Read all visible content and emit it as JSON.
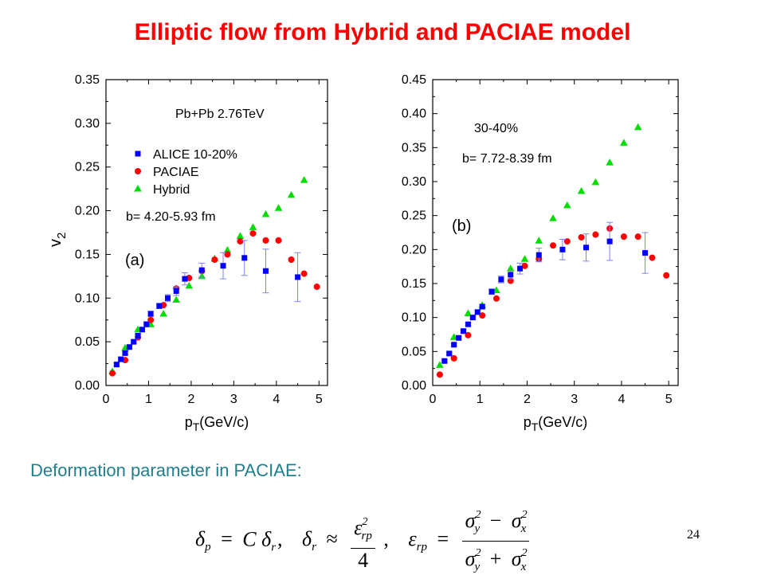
{
  "slide": {
    "title": "Elliptic flow from Hybrid and PACIAE model",
    "caption": "Deformation parameter in PACIAE:",
    "page_number": "24"
  },
  "formula": {
    "delta": "δ",
    "p": "p",
    "r": "r",
    "rp": "rp",
    "C": "C",
    "eps": "ε",
    "sigma": "σ",
    "x": "x",
    "y": "y",
    "two": "2",
    "four": "4",
    "eq": "=",
    "approx": "≈",
    "minus": "−",
    "plus": "+",
    "comma": ","
  },
  "colors": {
    "title": "#ff0000",
    "caption": "#1f7f8f",
    "alice": "#0000ff",
    "paciae": "#ff0000",
    "hybrid": "#00dd00",
    "errorbar": "#8080ff"
  },
  "chart_data": [
    {
      "type": "scatter",
      "panel_label": "(a)",
      "xlabel_main": "p",
      "xlabel_sub": "T",
      "xlabel_rest": "(GeV/c)",
      "ylabel_main": "v",
      "ylabel_sub": "2",
      "xlim": [
        0,
        5.2
      ],
      "ylim": [
        0,
        0.35
      ],
      "xticks": [
        0,
        1,
        2,
        3,
        4,
        5
      ],
      "yticks": [
        0.0,
        0.05,
        0.1,
        0.15,
        0.2,
        0.25,
        0.3,
        0.35
      ],
      "ytick_labels": [
        "0.00",
        "0.05",
        "0.10",
        "0.15",
        "0.20",
        "0.25",
        "0.30",
        "0.35"
      ],
      "annotations": [
        "Pb+Pb 2.76TeV",
        "b= 4.20-5.93 fm"
      ],
      "legend": [
        "ALICE 10-20%",
        "PACIAE",
        "Hybrid"
      ],
      "series": [
        {
          "name": "ALICE 10-20%",
          "marker": "square",
          "x": [
            0.25,
            0.35,
            0.45,
            0.55,
            0.65,
            0.75,
            0.85,
            0.95,
            1.05,
            1.25,
            1.45,
            1.65,
            1.85,
            2.25,
            2.75,
            3.25,
            3.75,
            4.5
          ],
          "y": [
            0.024,
            0.03,
            0.037,
            0.044,
            0.05,
            0.057,
            0.064,
            0.07,
            0.082,
            0.091,
            0.1,
            0.108,
            0.122,
            0.132,
            0.137,
            0.146,
            0.131,
            0.124
          ],
          "err": [
            0.002,
            0.002,
            0.002,
            0.002,
            0.002,
            0.002,
            0.002,
            0.003,
            0.003,
            0.003,
            0.004,
            0.005,
            0.007,
            0.008,
            0.015,
            0.02,
            0.025,
            0.028
          ]
        },
        {
          "name": "PACIAE",
          "marker": "circle",
          "x": [
            0.15,
            0.45,
            0.75,
            1.05,
            1.35,
            1.65,
            1.95,
            2.25,
            2.55,
            2.85,
            3.15,
            3.45,
            3.75,
            4.05,
            4.35,
            4.65,
            4.95
          ],
          "y": [
            0.014,
            0.029,
            0.055,
            0.075,
            0.092,
            0.111,
            0.123,
            0.131,
            0.144,
            0.15,
            0.165,
            0.174,
            0.166,
            0.166,
            0.144,
            0.128,
            0.113
          ]
        },
        {
          "name": "Hybrid",
          "marker": "triangle",
          "x": [
            0.15,
            0.45,
            0.75,
            1.05,
            1.35,
            1.65,
            1.95,
            2.25,
            2.55,
            2.85,
            3.15,
            3.45,
            3.75,
            4.05,
            4.35,
            4.65
          ],
          "y": [
            0.016,
            0.043,
            0.064,
            0.07,
            0.082,
            0.098,
            0.114,
            0.125,
            0.145,
            0.155,
            0.171,
            0.181,
            0.196,
            0.203,
            0.218,
            0.235
          ]
        }
      ]
    },
    {
      "type": "scatter",
      "panel_label": "(b)",
      "xlabel_main": "p",
      "xlabel_sub": "T",
      "xlabel_rest": "(GeV/c)",
      "xlim": [
        0,
        5.2
      ],
      "ylim": [
        0,
        0.45
      ],
      "xticks": [
        0,
        1,
        2,
        3,
        4,
        5
      ],
      "yticks": [
        0.0,
        0.05,
        0.1,
        0.15,
        0.2,
        0.25,
        0.3,
        0.35,
        0.4,
        0.45
      ],
      "ytick_labels": [
        "0.00",
        "0.05",
        "0.10",
        "0.15",
        "0.20",
        "0.25",
        "0.30",
        "0.35",
        "0.40",
        "0.45"
      ],
      "annotations": [
        "30-40%",
        "b= 7.72-8.39 fm"
      ],
      "series": [
        {
          "name": "ALICE",
          "marker": "square",
          "x": [
            0.25,
            0.35,
            0.45,
            0.55,
            0.65,
            0.75,
            0.85,
            0.95,
            1.05,
            1.25,
            1.45,
            1.65,
            1.85,
            2.25,
            2.75,
            3.25,
            3.75,
            4.5
          ],
          "y": [
            0.036,
            0.047,
            0.06,
            0.07,
            0.08,
            0.09,
            0.1,
            0.108,
            0.116,
            0.138,
            0.156,
            0.163,
            0.172,
            0.192,
            0.2,
            0.203,
            0.212,
            0.195
          ],
          "err": [
            0.002,
            0.002,
            0.002,
            0.002,
            0.002,
            0.002,
            0.002,
            0.003,
            0.003,
            0.004,
            0.005,
            0.006,
            0.008,
            0.01,
            0.015,
            0.02,
            0.028,
            0.03
          ]
        },
        {
          "name": "PACIAE",
          "marker": "circle",
          "x": [
            0.15,
            0.45,
            0.75,
            1.05,
            1.35,
            1.65,
            1.95,
            2.25,
            2.55,
            2.85,
            3.15,
            3.45,
            3.75,
            4.05,
            4.35,
            4.65,
            4.95
          ],
          "y": [
            0.016,
            0.04,
            0.074,
            0.103,
            0.128,
            0.154,
            0.176,
            0.186,
            0.206,
            0.212,
            0.218,
            0.222,
            0.231,
            0.219,
            0.219,
            0.188,
            0.162
          ]
        },
        {
          "name": "Hybrid",
          "marker": "triangle",
          "x": [
            0.15,
            0.45,
            0.75,
            1.05,
            1.35,
            1.65,
            1.95,
            2.25,
            2.55,
            2.85,
            3.15,
            3.45,
            3.75,
            4.05,
            4.35
          ],
          "y": [
            0.03,
            0.071,
            0.106,
            0.118,
            0.14,
            0.172,
            0.186,
            0.213,
            0.246,
            0.265,
            0.286,
            0.299,
            0.328,
            0.357,
            0.38
          ]
        }
      ]
    }
  ]
}
